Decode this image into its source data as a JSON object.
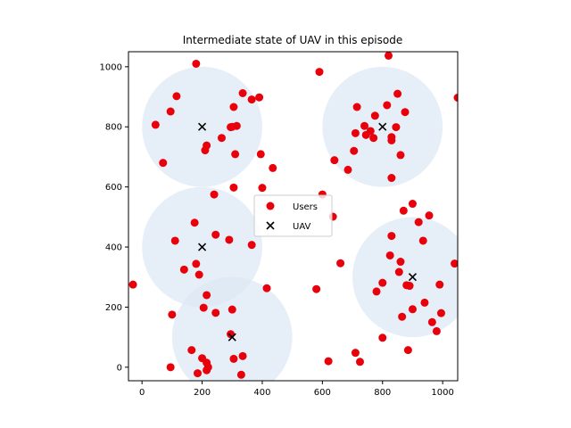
{
  "chart_data": {
    "type": "scatter",
    "title": "Intermediate state of UAV in this episode",
    "xlabel": "",
    "ylabel": "",
    "xlim": [
      -45,
      1050
    ],
    "ylim": [
      -45,
      1050
    ],
    "xticks": [
      0,
      200,
      400,
      600,
      800,
      1000
    ],
    "yticks": [
      0,
      200,
      400,
      600,
      800,
      1000
    ],
    "grid": false,
    "legend_position": "center",
    "colors": {
      "users": "#e8000b",
      "uav": "#000000",
      "coverage": "#dce8f3"
    },
    "coverage_radius": 200,
    "series": [
      {
        "name": "Users",
        "marker": "circle",
        "points": [
          [
            -30,
            275
          ],
          [
            45,
            807
          ],
          [
            70,
            680
          ],
          [
            95,
            0
          ],
          [
            95,
            851
          ],
          [
            100,
            175
          ],
          [
            110,
            421
          ],
          [
            115,
            902
          ],
          [
            140,
            325
          ],
          [
            165,
            57
          ],
          [
            175,
            481
          ],
          [
            180,
            344
          ],
          [
            180,
            1010
          ],
          [
            185,
            -20
          ],
          [
            190,
            308
          ],
          [
            200,
            30
          ],
          [
            205,
            198
          ],
          [
            210,
            722
          ],
          [
            215,
            738
          ],
          [
            215,
            240
          ],
          [
            215,
            15
          ],
          [
            215,
            -10
          ],
          [
            220,
            0
          ],
          [
            240,
            575
          ],
          [
            245,
            181
          ],
          [
            245,
            441
          ],
          [
            265,
            763
          ],
          [
            290,
            424
          ],
          [
            295,
            110
          ],
          [
            295,
            799
          ],
          [
            300,
            192
          ],
          [
            300,
            800
          ],
          [
            305,
            866
          ],
          [
            305,
            598
          ],
          [
            305,
            28
          ],
          [
            310,
            709
          ],
          [
            315,
            803
          ],
          [
            330,
            -25
          ],
          [
            335,
            37
          ],
          [
            335,
            912
          ],
          [
            365,
            407
          ],
          [
            365,
            891
          ],
          [
            390,
            898
          ],
          [
            395,
            709
          ],
          [
            400,
            597
          ],
          [
            415,
            263
          ],
          [
            435,
            663
          ],
          [
            580,
            260
          ],
          [
            590,
            983
          ],
          [
            600,
            575
          ],
          [
            620,
            20
          ],
          [
            635,
            501
          ],
          [
            640,
            689
          ],
          [
            660,
            346
          ],
          [
            685,
            657
          ],
          [
            705,
            720
          ],
          [
            710,
            779
          ],
          [
            710,
            48
          ],
          [
            715,
            866
          ],
          [
            725,
            18
          ],
          [
            740,
            803
          ],
          [
            745,
            773
          ],
          [
            760,
            786
          ],
          [
            770,
            763
          ],
          [
            775,
            837
          ],
          [
            780,
            252
          ],
          [
            800,
            98
          ],
          [
            800,
            281
          ],
          [
            815,
            872
          ],
          [
            820,
            1037
          ],
          [
            825,
            372
          ],
          [
            830,
            766
          ],
          [
            830,
            755
          ],
          [
            830,
            630
          ],
          [
            830,
            437
          ],
          [
            845,
            799
          ],
          [
            850,
            910
          ],
          [
            855,
            317
          ],
          [
            860,
            706
          ],
          [
            860,
            351
          ],
          [
            865,
            168
          ],
          [
            870,
            521
          ],
          [
            875,
            849
          ],
          [
            880,
            273
          ],
          [
            885,
            57
          ],
          [
            890,
            271
          ],
          [
            900,
            544
          ],
          [
            900,
            193
          ],
          [
            920,
            483
          ],
          [
            935,
            421
          ],
          [
            940,
            215
          ],
          [
            955,
            505
          ],
          [
            965,
            150
          ],
          [
            980,
            120
          ],
          [
            990,
            275
          ],
          [
            995,
            180
          ],
          [
            1040,
            345
          ],
          [
            1050,
            897
          ]
        ]
      },
      {
        "name": "UAV",
        "marker": "x",
        "points": [
          [
            200,
            800
          ],
          [
            800,
            800
          ],
          [
            200,
            400
          ],
          [
            900,
            300
          ],
          [
            300,
            100
          ]
        ]
      }
    ]
  }
}
